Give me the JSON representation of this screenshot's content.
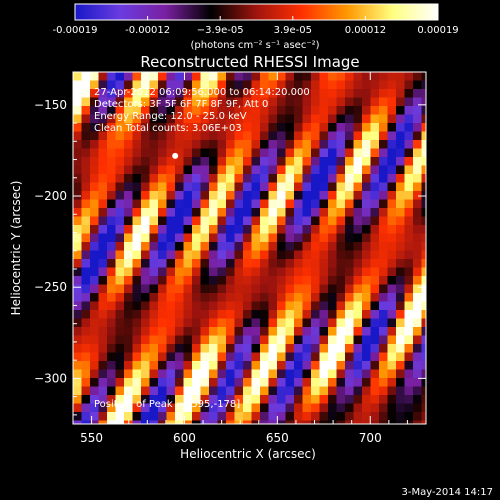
{
  "chart_data": {
    "type": "heatmap",
    "title": "Reconstructed RHESSI Image",
    "xlabel": "Heliocentric X (arcsec)",
    "ylabel": "Heliocentric Y (arcsec)",
    "xlim": [
      540,
      730
    ],
    "ylim": [
      -325,
      -132
    ],
    "x_ticks": [
      550,
      600,
      650,
      700
    ],
    "y_ticks": [
      -150,
      -200,
      -250,
      -300
    ],
    "colorbar": {
      "range": [
        -0.00019,
        0.00019
      ],
      "tick_labels": [
        "-0.00019",
        "-0.00012",
        "−3.9e-05",
        "3.9e-05",
        "0.00012",
        "0.00019"
      ],
      "unit_label": "(photons cm⁻² s⁻¹ asec⁻²)",
      "colors": [
        "#1818c8",
        "#6a3ce0",
        "#7a1fa0",
        "#000000",
        "#a0140e",
        "#ff3000",
        "#ff9800",
        "#ffff80",
        "#ffffff"
      ]
    },
    "annotations": [
      "27-Apr-2012 06:09:56.000 to 06:14:20.000",
      "Detectors: 3F 5F 6F 7F 8F 9F, Att 0",
      "Energy Range: 12.0 - 25.0 keV",
      "Clean     Total counts: 3.06E+03"
    ],
    "peak_label": "Position of Peak = [595,-178]",
    "peak_position": [
      595,
      -178
    ],
    "grid": false
  },
  "footer": {
    "date": "3-May-2014 14:17"
  }
}
